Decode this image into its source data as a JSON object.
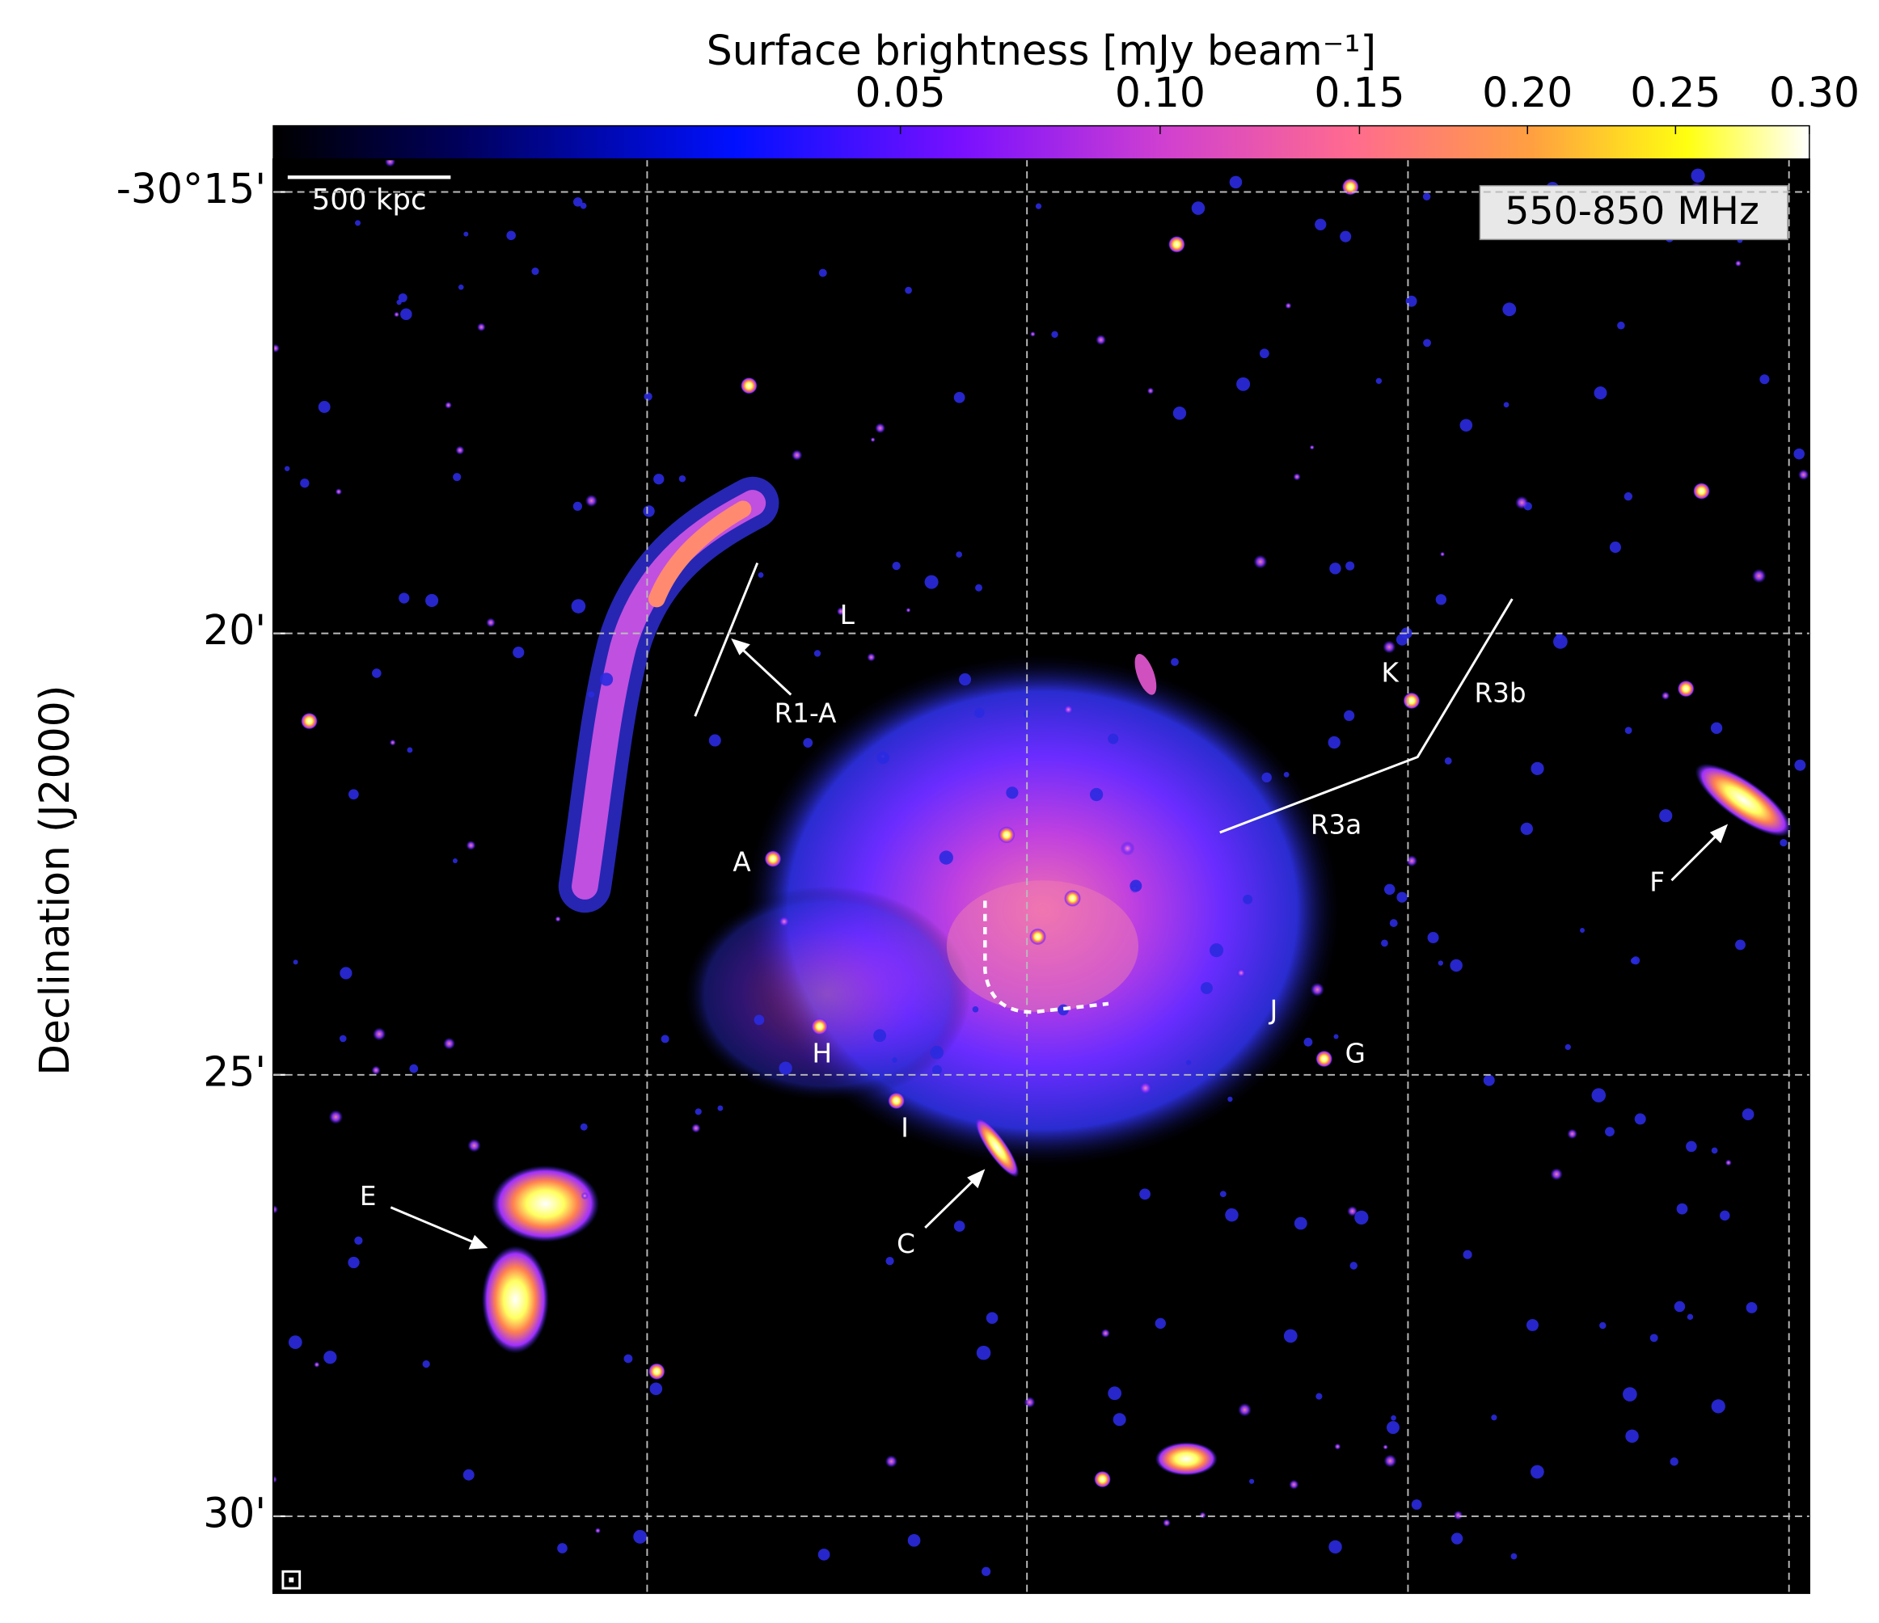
{
  "chart_data": {
    "type": "image",
    "colorbar": {
      "title": "Surface brightness [mJy beam⁻¹]",
      "scale": "sqrt",
      "clim": [
        0,
        0.3
      ],
      "ticks": [
        0.05,
        {
          "value": 0.1,
          "label": "0.10"
        },
        0.15,
        {
          "value": 0.2,
          "label": "0.20"
        },
        0.25,
        {
          "value": 0.3,
          "label": "0.30"
        }
      ]
    },
    "ylabel": "Declination (J2000)",
    "ylim": [
      14.63,
      30.87
    ],
    "yticks": [
      {
        "value": 15,
        "label": "-30°15'"
      },
      {
        "value": 20,
        "label": "20'"
      },
      {
        "value": 25,
        "label": "25'"
      },
      {
        "value": 30,
        "label": "30'"
      }
    ],
    "grid": true,
    "band_label": "550-850 MHz",
    "scale_bar": "500 kpc",
    "annotations": [
      "L",
      "R1-A",
      "A",
      "K",
      "R3b",
      "R3a",
      "F",
      "J",
      "G",
      "H",
      "I",
      "C",
      "E"
    ]
  }
}
